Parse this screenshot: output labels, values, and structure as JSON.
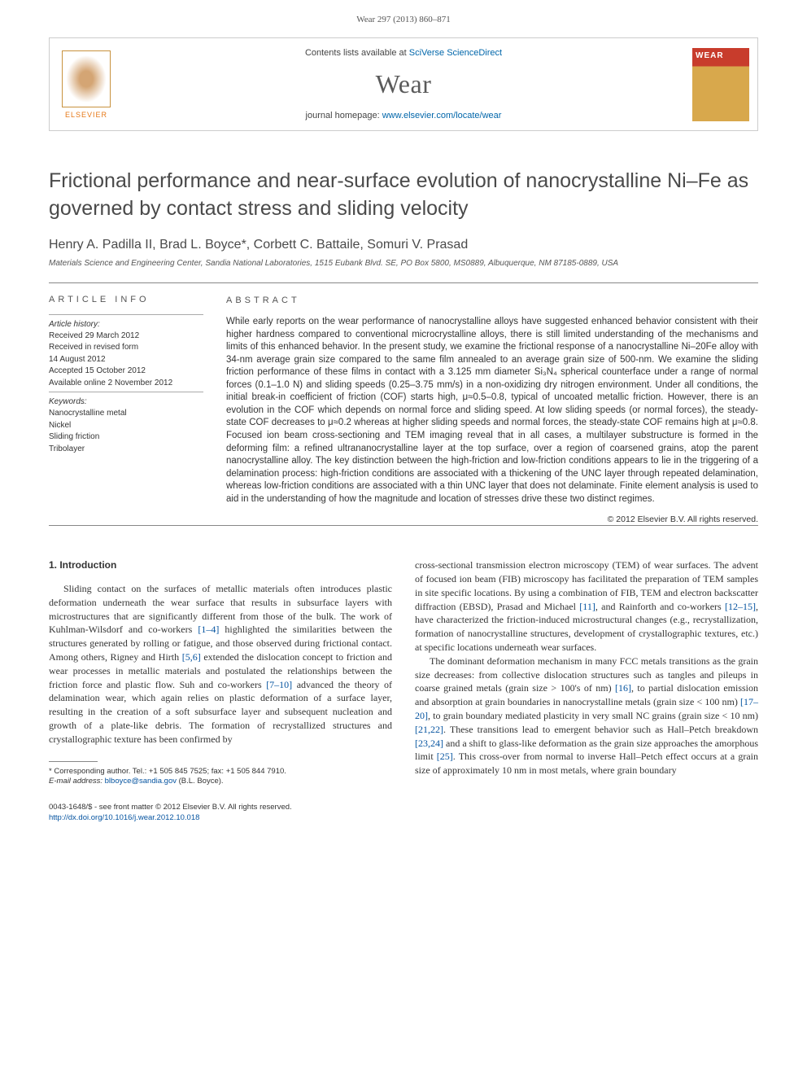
{
  "journal": {
    "citation": "Wear 297 (2013) 860–871",
    "contents_prefix": "Contents lists available at ",
    "contents_link": "SciVerse ScienceDirect",
    "name": "Wear",
    "homepage_prefix": "journal homepage: ",
    "homepage_link": "www.elsevier.com/locate/wear",
    "publisher": "ELSEVIER",
    "cover_label": "WEAR"
  },
  "article": {
    "title": "Frictional performance and near-surface evolution of nanocrystalline Ni–Fe as governed by contact stress and sliding velocity",
    "authors": "Henry A. Padilla II, Brad L. Boyce*, Corbett C. Battaile, Somuri V. Prasad",
    "affiliation": "Materials Science and Engineering Center, Sandia National Laboratories, 1515 Eubank Blvd. SE, PO Box 5800, MS0889, Albuquerque, NM 87185-0889, USA"
  },
  "info": {
    "heading": "ARTICLE INFO",
    "history_label": "Article history:",
    "received": "Received 29 March 2012",
    "revised": "Received in revised form",
    "revised_date": "14 August 2012",
    "accepted": "Accepted 15 October 2012",
    "online": "Available online 2 November 2012",
    "keywords_label": "Keywords:",
    "kw1": "Nanocrystalline metal",
    "kw2": "Nickel",
    "kw3": "Sliding friction",
    "kw4": "Tribolayer"
  },
  "abstract": {
    "heading": "ABSTRACT",
    "text": "While early reports on the wear performance of nanocrystalline alloys have suggested enhanced behavior consistent with their higher hardness compared to conventional microcrystalline alloys, there is still limited understanding of the mechanisms and limits of this enhanced behavior. In the present study, we examine the frictional response of a nanocrystalline Ni–20Fe alloy with 34-nm average grain size compared to the same film annealed to an average grain size of 500-nm. We examine the sliding friction performance of these films in contact with a 3.125 mm diameter Si₃N₄ spherical counterface under a range of normal forces (0.1–1.0 N) and sliding speeds (0.25–3.75 mm/s) in a non-oxidizing dry nitrogen environment. Under all conditions, the initial break-in coefficient of friction (COF) starts high, μ≈0.5–0.8, typical of uncoated metallic friction. However, there is an evolution in the COF which depends on normal force and sliding speed. At low sliding speeds (or normal forces), the steady-state COF decreases to μ≈0.2 whereas at higher sliding speeds and normal forces, the steady-state COF remains high at μ≈0.8. Focused ion beam cross-sectioning and TEM imaging reveal that in all cases, a multilayer substructure is formed in the deforming film: a refined ultrananocrystalline layer at the top surface, over a region of coarsened grains, atop the parent nanocrystalline alloy. The key distinction between the high-friction and low-friction conditions appears to lie in the triggering of a delamination process: high-friction conditions are associated with a thickening of the UNC layer through repeated delamination, whereas low-friction conditions are associated with a thin UNC layer that does not delaminate. Finite element analysis is used to aid in the understanding of how the magnitude and location of stresses drive these two distinct regimes.",
    "copyright": "© 2012 Elsevier B.V. All rights reserved."
  },
  "body": {
    "section_heading": "1. Introduction",
    "para1_a": "Sliding contact on the surfaces of metallic materials often introduces plastic deformation underneath the wear surface that results in subsurface layers with microstructures that are significantly different from those of the bulk. The work of Kuhlman-Wilsdorf and co-workers ",
    "ref1": "[1–4]",
    "para1_b": " highlighted the similarities between the structures generated by rolling or fatigue, and those observed during frictional contact. Among others, Rigney and Hirth ",
    "ref2": "[5,6]",
    "para1_c": " extended the dislocation concept to friction and wear processes in metallic materials and postulated the relationships between the friction force and plastic flow. Suh and co-workers ",
    "ref3": "[7–10]",
    "para1_d": " advanced the theory of delamination wear, which again relies on plastic deformation of a surface layer, resulting in the creation of a soft subsurface layer and subsequent nucleation and growth of a plate-like debris. The formation of recrystallized structures and crystallographic texture has been confirmed by",
    "para2_a": "cross-sectional transmission electron microscopy (TEM) of wear surfaces. The advent of focused ion beam (FIB) microscopy has facilitated the preparation of TEM samples in site specific locations. By using a combination of FIB, TEM and electron backscatter diffraction (EBSD), Prasad and Michael ",
    "ref4": "[11]",
    "para2_b": ", and Rainforth and co-workers ",
    "ref5": "[12–15]",
    "para2_c": ", have characterized the friction-induced microstructural changes (e.g., recrystallization, formation of nanocrystalline structures, development of crystallographic textures, etc.) at specific locations underneath wear surfaces.",
    "para3_a": "The dominant deformation mechanism in many FCC metals transitions as the grain size decreases: from collective dislocation structures such as tangles and pileups in coarse grained metals (grain size > 100's of nm) ",
    "ref6": "[16]",
    "para3_b": ", to partial dislocation emission and absorption at grain boundaries in nanocrystalline metals (grain size < 100 nm) ",
    "ref7": "[17–20]",
    "para3_c": ", to grain boundary mediated plasticity in very small NC grains (grain size < 10 nm) ",
    "ref8": "[21,22]",
    "para3_d": ". These transitions lead to emergent behavior such as Hall–Petch breakdown ",
    "ref9": "[23,24]",
    "para3_e": " and a shift to glass-like deformation as the grain size approaches the amorphous limit ",
    "ref10": "[25]",
    "para3_f": ". This cross-over from normal to inverse Hall–Petch effect occurs at a grain size of approximately 10 nm in most metals, where grain boundary"
  },
  "footnote": {
    "corresponding": "* Corresponding author. Tel.: +1 505 845 7525; fax: +1 505 844 7910.",
    "email_label": "E-mail address: ",
    "email": "blboyce@sandia.gov",
    "email_suffix": " (B.L. Boyce)."
  },
  "footer": {
    "issn": "0043-1648/$ - see front matter © 2012 Elsevier B.V. All rights reserved.",
    "doi": "http://dx.doi.org/10.1016/j.wear.2012.10.018"
  },
  "colors": {
    "link": "#0654a0",
    "elsevier_orange": "#e67817",
    "cover_red": "#c83c2c",
    "cover_gold": "#d8a84c"
  }
}
